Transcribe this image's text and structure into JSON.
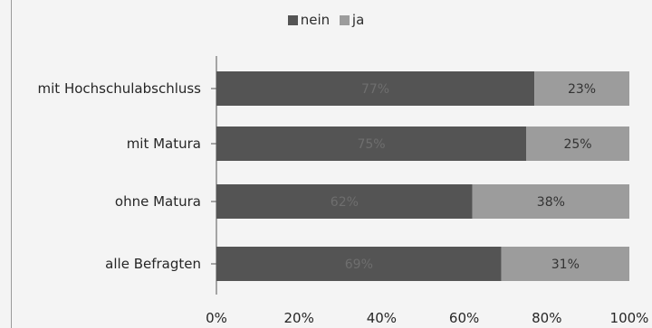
{
  "chart_data": {
    "type": "bar",
    "orientation": "horizontal",
    "stacked": true,
    "categories": [
      "mit Hochschulabschluss",
      "mit Matura",
      "ohne Matura",
      "alle Befragten"
    ],
    "series": [
      {
        "name": "nein",
        "values": [
          77,
          75,
          62,
          69
        ],
        "labels": [
          "77%",
          "75%",
          "62%",
          "69%"
        ],
        "color": "#545454",
        "label_color": "#6e6e6e"
      },
      {
        "name": "ja",
        "values": [
          23,
          25,
          38,
          31
        ],
        "labels": [
          "23%",
          "25%",
          "38%",
          "31%"
        ],
        "color": "#9c9c9c",
        "label_color": "#333333"
      }
    ],
    "xlim": [
      0,
      100
    ],
    "xticks": [
      "0%",
      "20%",
      "40%",
      "60%",
      "80%",
      "100%"
    ],
    "legend_position": "top-center",
    "grid": false
  }
}
